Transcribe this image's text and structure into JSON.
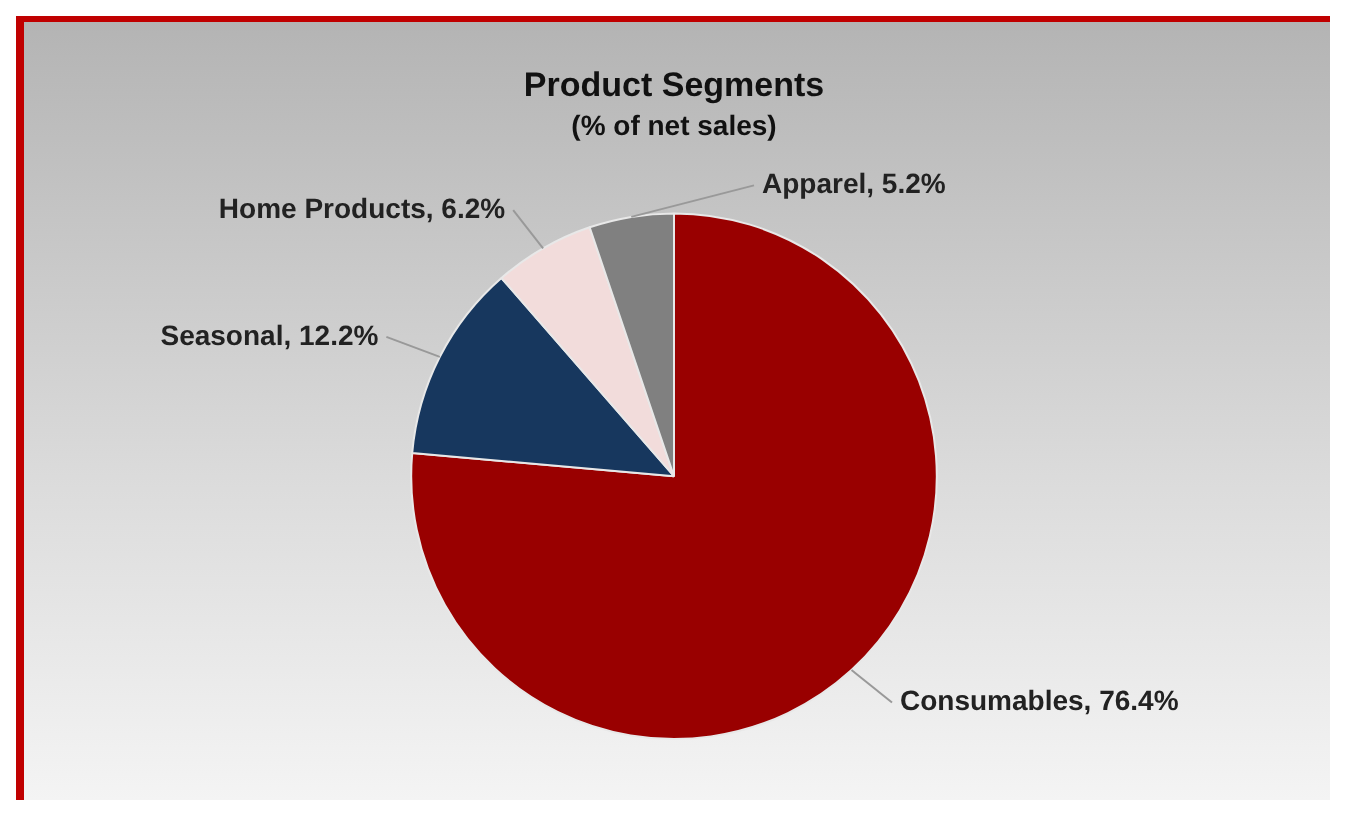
{
  "chart_data": {
    "type": "pie",
    "title": "Product Segments",
    "subtitle": "(% of net sales)",
    "categories": [
      "Consumables",
      "Seasonal",
      "Home Products",
      "Apparel"
    ],
    "values": [
      76.4,
      12.2,
      6.2,
      5.2
    ],
    "colors": [
      "#990000",
      "#17375e",
      "#f2dcdb",
      "#808080"
    ],
    "value_labels": [
      "76.4%",
      "12.2%",
      "6.2%",
      "5.2%"
    ],
    "legend": false
  }
}
